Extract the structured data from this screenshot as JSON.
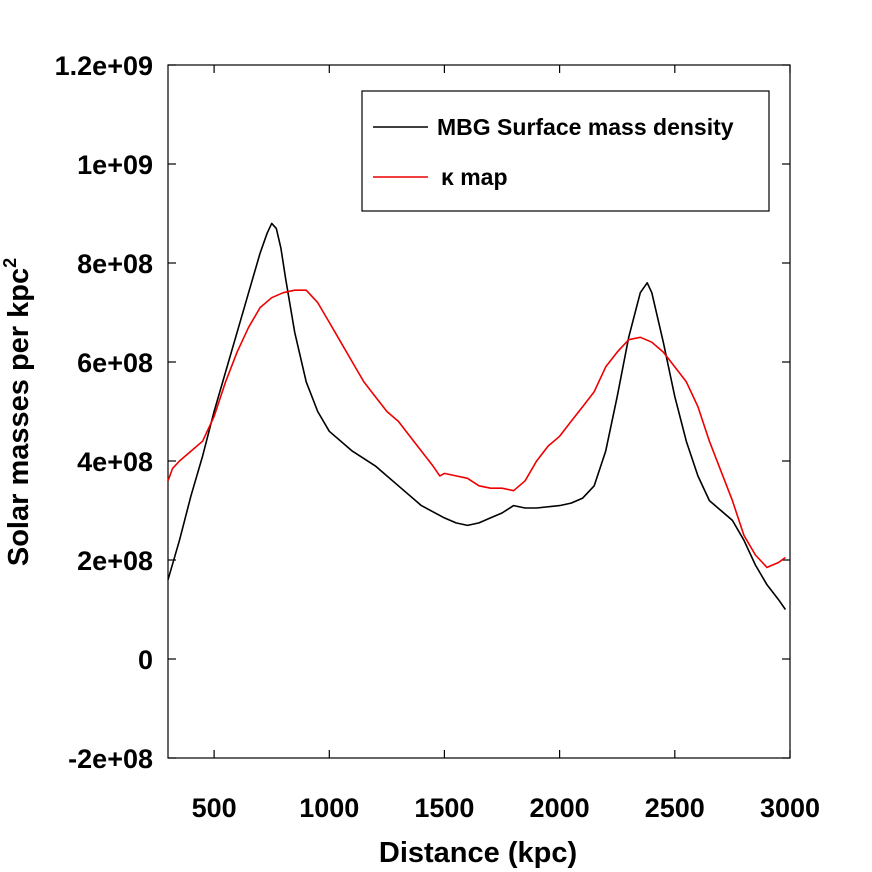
{
  "chart_data": {
    "type": "line",
    "xlabel": "Distance (kpc)",
    "ylabel": "Solar masses per kpc",
    "ylabel_sup": "2",
    "xlim": [
      300,
      3000
    ],
    "ylim": [
      -200000000,
      1200000000
    ],
    "xticks": [
      500,
      1000,
      1500,
      2000,
      2500,
      3000
    ],
    "xtick_labels": [
      "500",
      "1000",
      "1500",
      "2000",
      "2500",
      "3000"
    ],
    "yticks": [
      -200000000,
      0,
      200000000,
      400000000,
      600000000,
      800000000,
      1000000000,
      1200000000
    ],
    "ytick_labels": [
      "-2e+08",
      "0",
      "2e+08",
      "4e+08",
      "6e+08",
      "8e+08",
      "1e+09",
      "1.2e+09"
    ],
    "grid": false,
    "legend_position": "top-right",
    "series": [
      {
        "name": "MBG Surface mass density",
        "color": "#000000",
        "x": [
          300,
          350,
          400,
          450,
          500,
          550,
          600,
          650,
          700,
          730,
          750,
          770,
          790,
          810,
          850,
          900,
          950,
          1000,
          1100,
          1200,
          1300,
          1400,
          1500,
          1550,
          1600,
          1650,
          1700,
          1750,
          1800,
          1850,
          1900,
          2000,
          2050,
          2100,
          2150,
          2200,
          2250,
          2300,
          2350,
          2380,
          2400,
          2450,
          2500,
          2550,
          2600,
          2650,
          2700,
          2750,
          2800,
          2850,
          2900,
          2950,
          2980
        ],
        "y": [
          160000000,
          240000000,
          330000000,
          410000000,
          500000000,
          580000000,
          660000000,
          740000000,
          820000000,
          860000000,
          880000000,
          870000000,
          830000000,
          770000000,
          660000000,
          560000000,
          500000000,
          460000000,
          420000000,
          390000000,
          350000000,
          310000000,
          285000000,
          275000000,
          270000000,
          275000000,
          285000000,
          295000000,
          310000000,
          305000000,
          305000000,
          310000000,
          315000000,
          325000000,
          350000000,
          420000000,
          530000000,
          650000000,
          740000000,
          760000000,
          740000000,
          640000000,
          530000000,
          440000000,
          370000000,
          320000000,
          300000000,
          280000000,
          240000000,
          190000000,
          150000000,
          120000000,
          100000000
        ]
      },
      {
        "name": "κ map",
        "color": "#ee0000",
        "x": [
          300,
          320,
          350,
          400,
          450,
          500,
          550,
          600,
          650,
          700,
          750,
          800,
          850,
          900,
          950,
          1000,
          1050,
          1100,
          1150,
          1200,
          1250,
          1300,
          1350,
          1400,
          1450,
          1480,
          1500,
          1550,
          1600,
          1650,
          1700,
          1750,
          1800,
          1850,
          1900,
          1950,
          2000,
          2050,
          2100,
          2150,
          2200,
          2250,
          2300,
          2350,
          2400,
          2450,
          2500,
          2550,
          2600,
          2650,
          2700,
          2750,
          2800,
          2850,
          2900,
          2950,
          2980
        ],
        "y": [
          360000000,
          385000000,
          400000000,
          420000000,
          440000000,
          490000000,
          560000000,
          620000000,
          670000000,
          710000000,
          730000000,
          740000000,
          745000000,
          745000000,
          720000000,
          680000000,
          640000000,
          600000000,
          560000000,
          530000000,
          500000000,
          480000000,
          450000000,
          420000000,
          390000000,
          370000000,
          375000000,
          370000000,
          365000000,
          350000000,
          345000000,
          345000000,
          340000000,
          360000000,
          400000000,
          430000000,
          450000000,
          480000000,
          510000000,
          540000000,
          590000000,
          620000000,
          645000000,
          650000000,
          640000000,
          620000000,
          590000000,
          560000000,
          510000000,
          440000000,
          380000000,
          320000000,
          250000000,
          210000000,
          185000000,
          195000000,
          205000000
        ]
      }
    ]
  }
}
